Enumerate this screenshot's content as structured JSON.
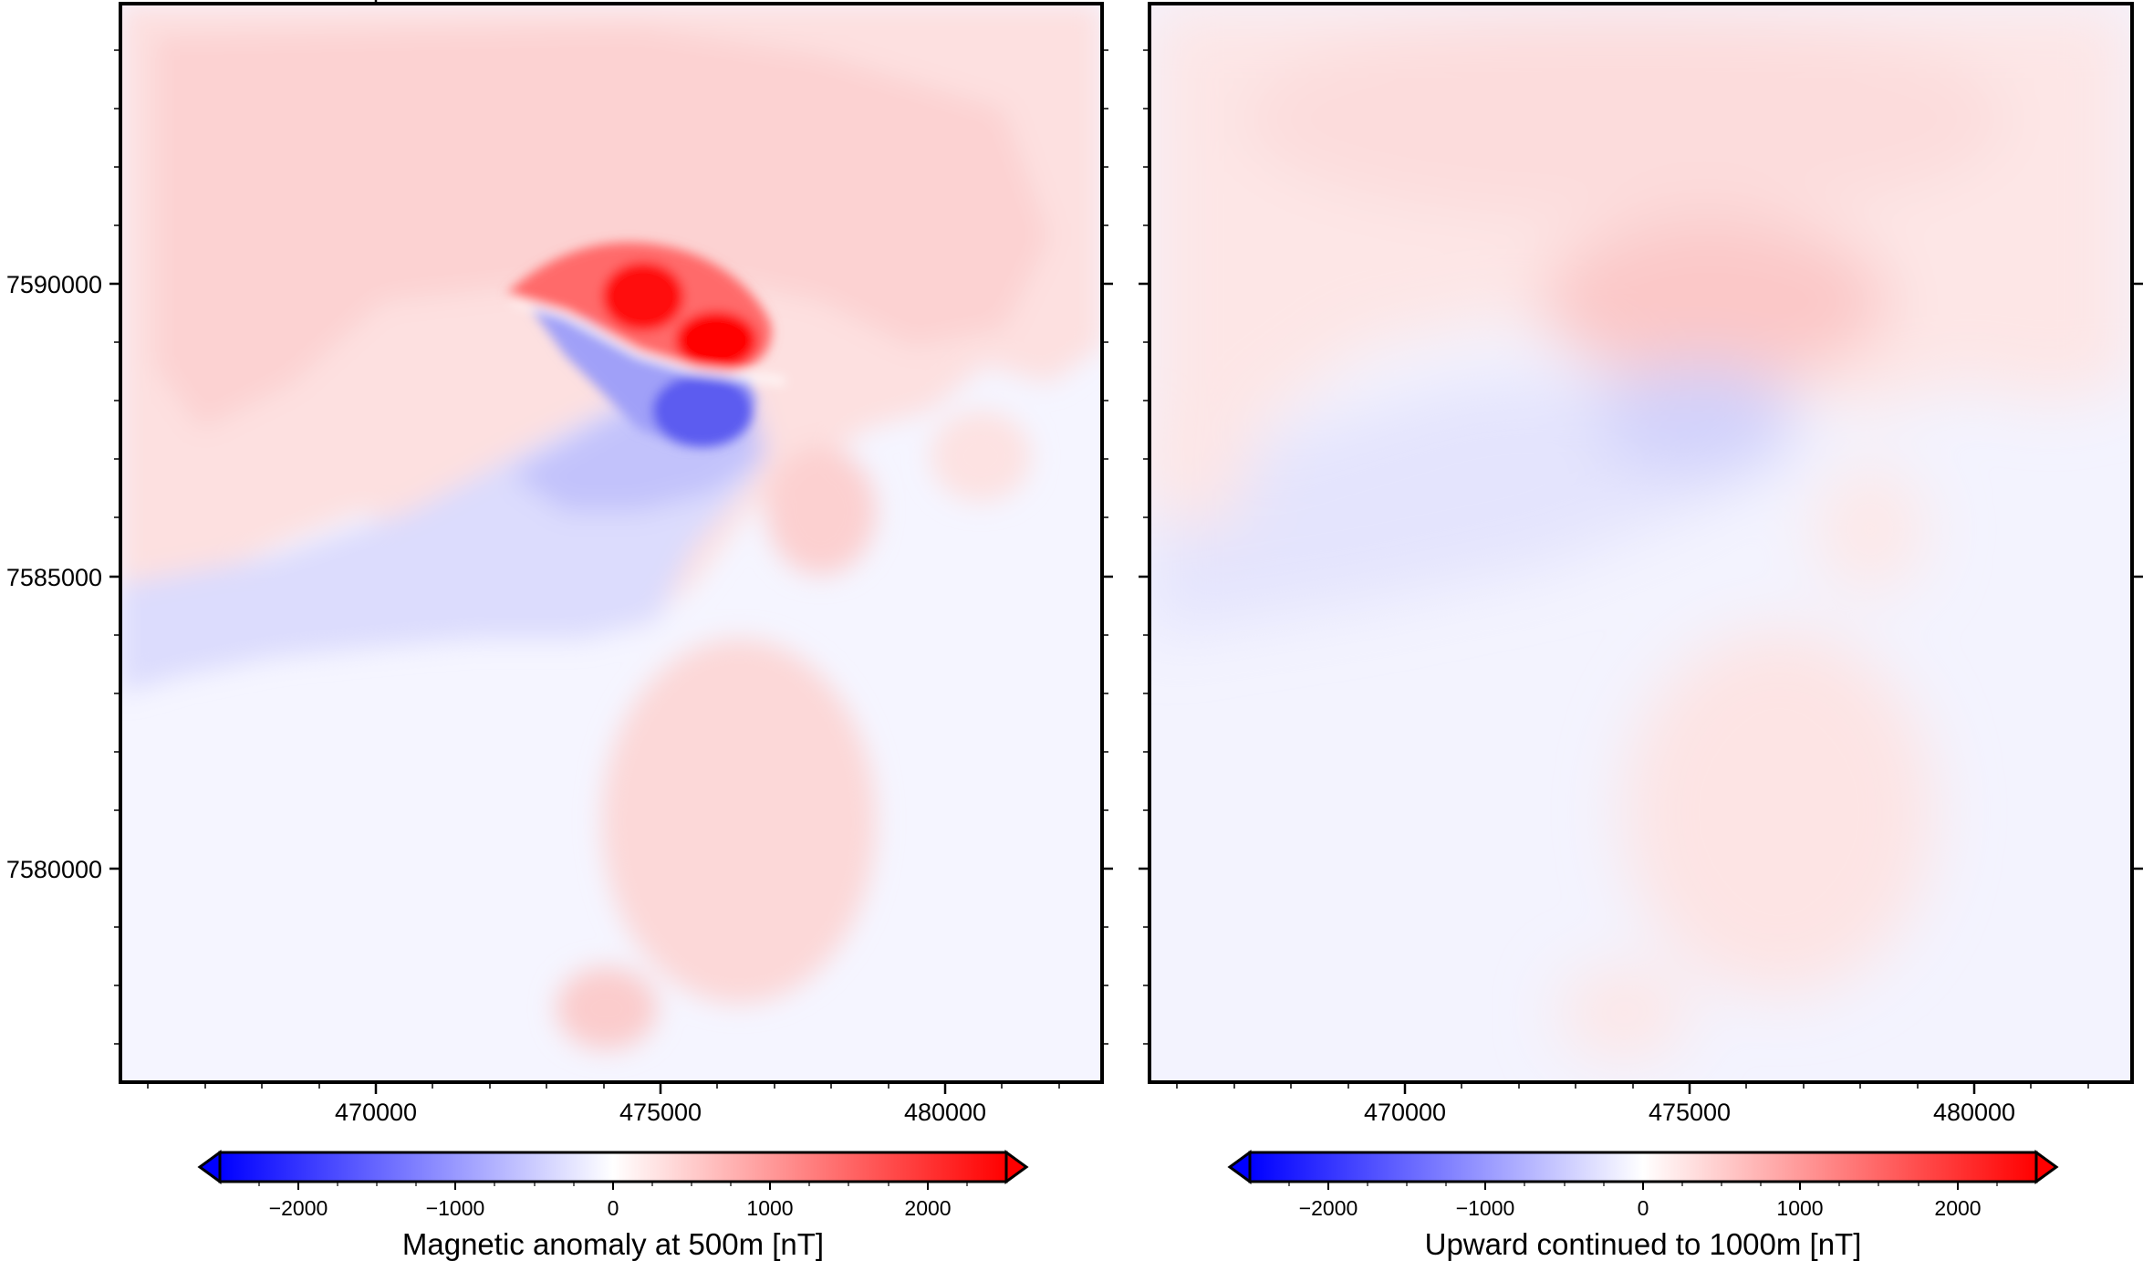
{
  "panels": [
    {
      "id": "left",
      "colorbar_label": "Magnetic anomaly at 500m [nT]",
      "x_tick_labels": [
        "470000",
        "475000",
        "480000"
      ],
      "y_tick_labels": [
        "7590000",
        "7585000",
        "7580000"
      ]
    },
    {
      "id": "right",
      "colorbar_label": "Upward continued to 1000m [nT]",
      "x_tick_labels": [
        "470000",
        "475000",
        "480000"
      ],
      "y_tick_labels": []
    }
  ],
  "colorbar": {
    "tick_labels": [
      "−2000",
      "−1000",
      "0",
      "1000",
      "2000"
    ],
    "range": [
      -2500,
      2500
    ],
    "colors": {
      "low": "#0000ff",
      "mid": "#ffffff",
      "high": "#ff0000"
    }
  },
  "axes": {
    "x_range": [
      465700,
      482950
    ],
    "y_range": [
      7576250,
      7594750
    ]
  }
}
